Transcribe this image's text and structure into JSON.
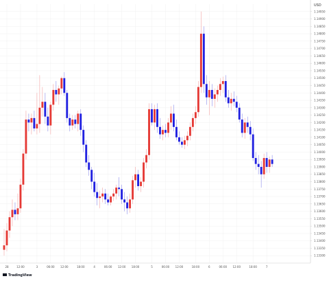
{
  "chart_data": {
    "type": "candlestick",
    "currency": "USD",
    "branding": "TradingView",
    "colors": {
      "up": "#e53935",
      "down": "#2020e0",
      "wick_up": "#f3a3a3",
      "wick_down": "#8c8cec",
      "grid": "#f0f0f0",
      "axis": "#cfcfcf"
    },
    "y_axis": {
      "min": 1.1325,
      "max": 1.15,
      "tick_labels": [
        "1.14950",
        "1.14900",
        "1.14850",
        "1.14800",
        "1.14750",
        "1.14700",
        "1.14650",
        "1.14600",
        "1.14550",
        "1.14500",
        "1.14450",
        "1.14400",
        "1.14350",
        "1.14300",
        "1.14250",
        "1.14200",
        "1.14150",
        "1.14100",
        "1.14050",
        "1.14000",
        "1.13950",
        "1.13900",
        "1.13850",
        "1.13800",
        "1.13750",
        "1.13700",
        "1.13650",
        "1.13600",
        "1.13550",
        "1.13500",
        "1.13450",
        "1.13400",
        "1.13350",
        "1.13300"
      ]
    },
    "x_axis": {
      "n_bars": 112,
      "tick_labels": [
        {
          "bar": 1,
          "label": "28"
        },
        {
          "bar": 6,
          "label": "12:00"
        },
        {
          "bar": 12,
          "label": "3"
        },
        {
          "bar": 17,
          "label": "06:00"
        },
        {
          "bar": 22,
          "label": "12:00"
        },
        {
          "bar": 28,
          "label": "18:00"
        },
        {
          "bar": 33,
          "label": "4"
        },
        {
          "bar": 38,
          "label": "06:00"
        },
        {
          "bar": 43,
          "label": "12:00"
        },
        {
          "bar": 48,
          "label": "18:00"
        },
        {
          "bar": 54,
          "label": "5"
        },
        {
          "bar": 59,
          "label": "06:00"
        },
        {
          "bar": 64,
          "label": "12:00"
        },
        {
          "bar": 70,
          "label": "18:00"
        },
        {
          "bar": 75,
          "label": "6"
        },
        {
          "bar": 80,
          "label": "06:00"
        },
        {
          "bar": 85,
          "label": "12:00"
        },
        {
          "bar": 91,
          "label": "18:00"
        },
        {
          "bar": 96,
          "label": "7"
        }
      ]
    },
    "candles": [
      {
        "o": 1.1334,
        "h": 1.1348,
        "l": 1.133,
        "c": 1.1337
      },
      {
        "o": 1.1337,
        "h": 1.1352,
        "l": 1.1333,
        "c": 1.1347
      },
      {
        "o": 1.1347,
        "h": 1.136,
        "l": 1.1342,
        "c": 1.1356
      },
      {
        "o": 1.1356,
        "h": 1.1368,
        "l": 1.135,
        "c": 1.1361
      },
      {
        "o": 1.1361,
        "h": 1.1366,
        "l": 1.1354,
        "c": 1.1358
      },
      {
        "o": 1.1358,
        "h": 1.1372,
        "l": 1.1354,
        "c": 1.1362
      },
      {
        "o": 1.1362,
        "h": 1.1382,
        "l": 1.1359,
        "c": 1.1378
      },
      {
        "o": 1.1378,
        "h": 1.1402,
        "l": 1.1374,
        "c": 1.1399
      },
      {
        "o": 1.1399,
        "h": 1.1428,
        "l": 1.1395,
        "c": 1.1422
      },
      {
        "o": 1.1422,
        "h": 1.1426,
        "l": 1.1414,
        "c": 1.142
      },
      {
        "o": 1.142,
        "h": 1.1426,
        "l": 1.1412,
        "c": 1.1423
      },
      {
        "o": 1.1423,
        "h": 1.1428,
        "l": 1.1414,
        "c": 1.1416
      },
      {
        "o": 1.1416,
        "h": 1.144,
        "l": 1.1412,
        "c": 1.1419
      },
      {
        "o": 1.1419,
        "h": 1.1452,
        "l": 1.1413,
        "c": 1.143
      },
      {
        "o": 1.143,
        "h": 1.1444,
        "l": 1.1424,
        "c": 1.1434
      },
      {
        "o": 1.1434,
        "h": 1.144,
        "l": 1.1419,
        "c": 1.1424
      },
      {
        "o": 1.1424,
        "h": 1.143,
        "l": 1.1414,
        "c": 1.1418
      },
      {
        "o": 1.1418,
        "h": 1.1434,
        "l": 1.1412,
        "c": 1.1432
      },
      {
        "o": 1.1432,
        "h": 1.1446,
        "l": 1.1428,
        "c": 1.1442
      },
      {
        "o": 1.1442,
        "h": 1.1448,
        "l": 1.1434,
        "c": 1.1439
      },
      {
        "o": 1.1439,
        "h": 1.1445,
        "l": 1.1432,
        "c": 1.1443
      },
      {
        "o": 1.1443,
        "h": 1.1451,
        "l": 1.1439,
        "c": 1.145
      },
      {
        "o": 1.145,
        "h": 1.1454,
        "l": 1.1438,
        "c": 1.144
      },
      {
        "o": 1.144,
        "h": 1.1442,
        "l": 1.142,
        "c": 1.1423
      },
      {
        "o": 1.1423,
        "h": 1.1426,
        "l": 1.1414,
        "c": 1.1418
      },
      {
        "o": 1.1418,
        "h": 1.1425,
        "l": 1.1415,
        "c": 1.1422
      },
      {
        "o": 1.1422,
        "h": 1.1425,
        "l": 1.1416,
        "c": 1.1419
      },
      {
        "o": 1.1419,
        "h": 1.1428,
        "l": 1.1414,
        "c": 1.1426
      },
      {
        "o": 1.1426,
        "h": 1.1429,
        "l": 1.1411,
        "c": 1.1415
      },
      {
        "o": 1.1415,
        "h": 1.1418,
        "l": 1.14,
        "c": 1.1405
      },
      {
        "o": 1.1405,
        "h": 1.1408,
        "l": 1.139,
        "c": 1.1393
      },
      {
        "o": 1.1393,
        "h": 1.1398,
        "l": 1.1384,
        "c": 1.1388
      },
      {
        "o": 1.1388,
        "h": 1.139,
        "l": 1.1375,
        "c": 1.138
      },
      {
        "o": 1.138,
        "h": 1.1386,
        "l": 1.137,
        "c": 1.1373
      },
      {
        "o": 1.1373,
        "h": 1.1379,
        "l": 1.1364,
        "c": 1.1369
      },
      {
        "o": 1.1369,
        "h": 1.1374,
        "l": 1.1362,
        "c": 1.137
      },
      {
        "o": 1.137,
        "h": 1.1376,
        "l": 1.1366,
        "c": 1.1372
      },
      {
        "o": 1.1372,
        "h": 1.1375,
        "l": 1.1365,
        "c": 1.1368
      },
      {
        "o": 1.1368,
        "h": 1.1372,
        "l": 1.1364,
        "c": 1.1366
      },
      {
        "o": 1.1366,
        "h": 1.1371,
        "l": 1.1364,
        "c": 1.137
      },
      {
        "o": 1.137,
        "h": 1.1375,
        "l": 1.1367,
        "c": 1.1372
      },
      {
        "o": 1.1372,
        "h": 1.1378,
        "l": 1.1368,
        "c": 1.1376
      },
      {
        "o": 1.1376,
        "h": 1.1383,
        "l": 1.137,
        "c": 1.1375
      },
      {
        "o": 1.1375,
        "h": 1.1378,
        "l": 1.1365,
        "c": 1.1368
      },
      {
        "o": 1.1368,
        "h": 1.1373,
        "l": 1.136,
        "c": 1.1366
      },
      {
        "o": 1.1366,
        "h": 1.137,
        "l": 1.1358,
        "c": 1.1362
      },
      {
        "o": 1.1362,
        "h": 1.1372,
        "l": 1.1359,
        "c": 1.1368
      },
      {
        "o": 1.1368,
        "h": 1.1384,
        "l": 1.1365,
        "c": 1.1381
      },
      {
        "o": 1.1381,
        "h": 1.139,
        "l": 1.1376,
        "c": 1.1385
      },
      {
        "o": 1.1385,
        "h": 1.1388,
        "l": 1.1374,
        "c": 1.1377
      },
      {
        "o": 1.1377,
        "h": 1.1383,
        "l": 1.1373,
        "c": 1.138
      },
      {
        "o": 1.138,
        "h": 1.1396,
        "l": 1.1376,
        "c": 1.1393
      },
      {
        "o": 1.1393,
        "h": 1.1402,
        "l": 1.1389,
        "c": 1.1398
      },
      {
        "o": 1.1398,
        "h": 1.1433,
        "l": 1.1395,
        "c": 1.1429
      },
      {
        "o": 1.1429,
        "h": 1.1433,
        "l": 1.1418,
        "c": 1.142
      },
      {
        "o": 1.142,
        "h": 1.1432,
        "l": 1.1415,
        "c": 1.1429
      },
      {
        "o": 1.1429,
        "h": 1.1433,
        "l": 1.1413,
        "c": 1.1417
      },
      {
        "o": 1.1417,
        "h": 1.1423,
        "l": 1.1409,
        "c": 1.1412
      },
      {
        "o": 1.1412,
        "h": 1.1418,
        "l": 1.1408,
        "c": 1.1415
      },
      {
        "o": 1.1415,
        "h": 1.1419,
        "l": 1.141,
        "c": 1.1413
      },
      {
        "o": 1.1413,
        "h": 1.1423,
        "l": 1.141,
        "c": 1.142
      },
      {
        "o": 1.142,
        "h": 1.1431,
        "l": 1.1415,
        "c": 1.1426
      },
      {
        "o": 1.1426,
        "h": 1.1432,
        "l": 1.1414,
        "c": 1.1417
      },
      {
        "o": 1.1417,
        "h": 1.1422,
        "l": 1.1408,
        "c": 1.141
      },
      {
        "o": 1.141,
        "h": 1.1414,
        "l": 1.1405,
        "c": 1.1407
      },
      {
        "o": 1.1407,
        "h": 1.141,
        "l": 1.1403,
        "c": 1.1405
      },
      {
        "o": 1.1405,
        "h": 1.1411,
        "l": 1.1402,
        "c": 1.1408
      },
      {
        "o": 1.1408,
        "h": 1.1414,
        "l": 1.1404,
        "c": 1.1411
      },
      {
        "o": 1.1411,
        "h": 1.142,
        "l": 1.1408,
        "c": 1.1417
      },
      {
        "o": 1.1417,
        "h": 1.1426,
        "l": 1.1414,
        "c": 1.1423
      },
      {
        "o": 1.1423,
        "h": 1.1431,
        "l": 1.1419,
        "c": 1.1427
      },
      {
        "o": 1.1427,
        "h": 1.1448,
        "l": 1.1424,
        "c": 1.1444
      },
      {
        "o": 1.1444,
        "h": 1.1495,
        "l": 1.144,
        "c": 1.148
      },
      {
        "o": 1.148,
        "h": 1.1485,
        "l": 1.144,
        "c": 1.1446
      },
      {
        "o": 1.1446,
        "h": 1.1452,
        "l": 1.1432,
        "c": 1.1437
      },
      {
        "o": 1.1437,
        "h": 1.1448,
        "l": 1.1425,
        "c": 1.1442
      },
      {
        "o": 1.1442,
        "h": 1.1446,
        "l": 1.1431,
        "c": 1.1436
      },
      {
        "o": 1.1436,
        "h": 1.1443,
        "l": 1.143,
        "c": 1.1439
      },
      {
        "o": 1.1439,
        "h": 1.1445,
        "l": 1.1434,
        "c": 1.1442
      },
      {
        "o": 1.1442,
        "h": 1.145,
        "l": 1.1438,
        "c": 1.1446
      },
      {
        "o": 1.1446,
        "h": 1.1451,
        "l": 1.144,
        "c": 1.1448
      },
      {
        "o": 1.1448,
        "h": 1.1452,
        "l": 1.1434,
        "c": 1.1437
      },
      {
        "o": 1.1437,
        "h": 1.1442,
        "l": 1.143,
        "c": 1.1433
      },
      {
        "o": 1.1433,
        "h": 1.144,
        "l": 1.1428,
        "c": 1.1436
      },
      {
        "o": 1.1436,
        "h": 1.1441,
        "l": 1.1431,
        "c": 1.1434
      },
      {
        "o": 1.1434,
        "h": 1.1438,
        "l": 1.1427,
        "c": 1.143
      },
      {
        "o": 1.143,
        "h": 1.1433,
        "l": 1.142,
        "c": 1.1422
      },
      {
        "o": 1.1422,
        "h": 1.1426,
        "l": 1.141,
        "c": 1.1413
      },
      {
        "o": 1.1413,
        "h": 1.1423,
        "l": 1.1409,
        "c": 1.142
      },
      {
        "o": 1.142,
        "h": 1.1424,
        "l": 1.1413,
        "c": 1.1417
      },
      {
        "o": 1.1417,
        "h": 1.1421,
        "l": 1.1408,
        "c": 1.1412
      },
      {
        "o": 1.1412,
        "h": 1.1416,
        "l": 1.1394,
        "c": 1.1396
      },
      {
        "o": 1.1396,
        "h": 1.14,
        "l": 1.1388,
        "c": 1.1392
      },
      {
        "o": 1.1392,
        "h": 1.1398,
        "l": 1.1385,
        "c": 1.139
      },
      {
        "o": 1.139,
        "h": 1.1394,
        "l": 1.1376,
        "c": 1.1385
      },
      {
        "o": 1.1385,
        "h": 1.1399,
        "l": 1.1382,
        "c": 1.1396
      },
      {
        "o": 1.1396,
        "h": 1.14,
        "l": 1.1386,
        "c": 1.139
      },
      {
        "o": 1.139,
        "h": 1.1397,
        "l": 1.1386,
        "c": 1.1395
      },
      {
        "o": 1.1395,
        "h": 1.1398,
        "l": 1.139,
        "c": 1.1392
      }
    ]
  }
}
